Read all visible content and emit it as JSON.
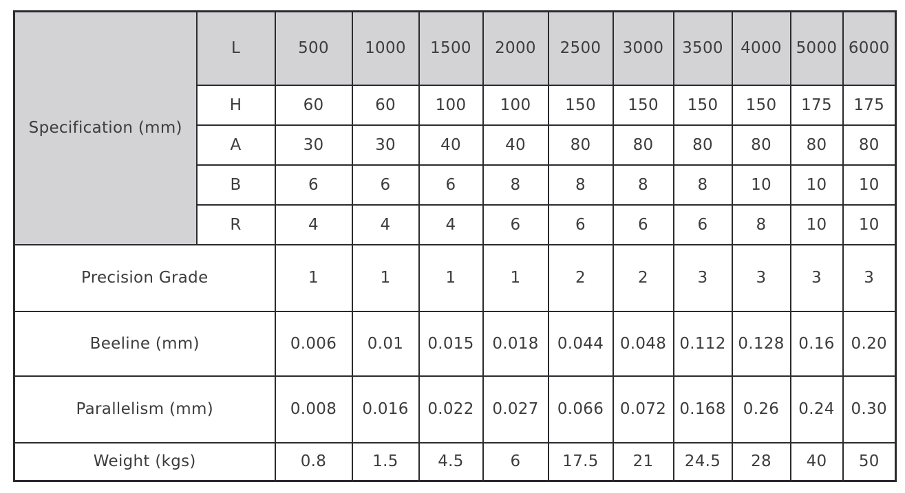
{
  "table": {
    "spec_label": "Specification (mm)",
    "header_param": "L",
    "header_values": [
      "500",
      "1000",
      "1500",
      "2000",
      "2500",
      "3000",
      "3500",
      "4000",
      "5000",
      "6000"
    ],
    "spec_rows": [
      {
        "param": "H",
        "values": [
          "60",
          "60",
          "100",
          "100",
          "150",
          "150",
          "150",
          "150",
          "175",
          "175"
        ]
      },
      {
        "param": "A",
        "values": [
          "30",
          "30",
          "40",
          "40",
          "80",
          "80",
          "80",
          "80",
          "80",
          "80"
        ]
      },
      {
        "param": "B",
        "values": [
          "6",
          "6",
          "6",
          "8",
          "8",
          "8",
          "8",
          "10",
          "10",
          "10"
        ]
      },
      {
        "param": "R",
        "values": [
          "4",
          "4",
          "4",
          "6",
          "6",
          "6",
          "6",
          "8",
          "10",
          "10"
        ]
      }
    ],
    "summary_rows": [
      {
        "label": "Precision Grade",
        "values": [
          "1",
          "1",
          "1",
          "1",
          "2",
          "2",
          "3",
          "3",
          "3",
          "3"
        ]
      },
      {
        "label": "Beeline (mm)",
        "values": [
          "0.006",
          "0.01",
          "0.015",
          "0.018",
          "0.044",
          "0.048",
          "0.112",
          "0.128",
          "0.16",
          "0.20"
        ]
      },
      {
        "label": "Parallelism (mm)",
        "values": [
          "0.008",
          "0.016",
          "0.022",
          "0.027",
          "0.066",
          "0.072",
          "0.168",
          "0.26",
          "0.24",
          "0.30"
        ]
      },
      {
        "label": "Weight (kgs)",
        "values": [
          "0.8",
          "1.5",
          "4.5",
          "6",
          "17.5",
          "21",
          "24.5",
          "28",
          "40",
          "50"
        ]
      }
    ],
    "colors": {
      "header_bg": "#d3d3d5",
      "border": "#2b2b2e",
      "text": "#3d3d3f",
      "page_bg": "#ffffff"
    }
  }
}
